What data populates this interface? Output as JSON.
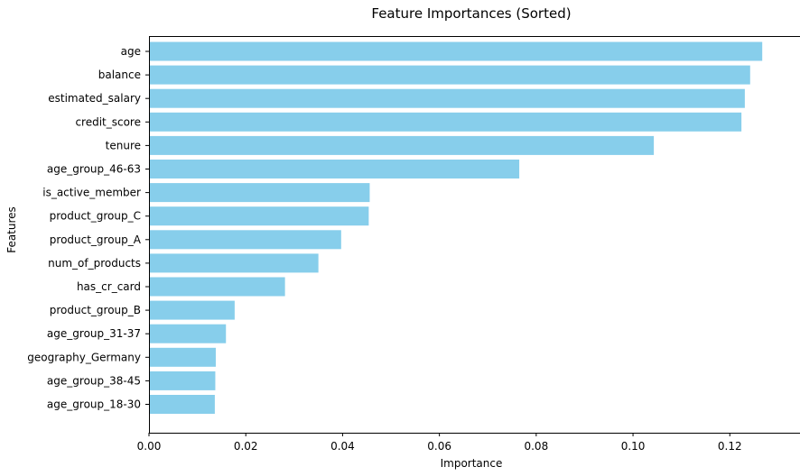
{
  "chart_data": {
    "type": "bar",
    "orientation": "horizontal",
    "title": "Feature Importances (Sorted)",
    "xlabel": "Importance",
    "ylabel": "Features",
    "xlim": [
      0,
      0.1345
    ],
    "xticks": [
      "0.00",
      "0.02",
      "0.04",
      "0.06",
      "0.08",
      "0.10",
      "0.12"
    ],
    "xtick_values": [
      0,
      0.02,
      0.04,
      0.06,
      0.08,
      0.1,
      0.12
    ],
    "grid": false,
    "legend": "none",
    "color": "#87ceeb",
    "categories": [
      "age",
      "balance",
      "estimated_salary",
      "credit_score",
      "tenure",
      "age_group_46-63",
      "is_active_member",
      "product_group_C",
      "product_group_A",
      "num_of_products",
      "has_cr_card",
      "product_group_B",
      "age_group_31-37",
      "geography_Germany",
      "age_group_38-45",
      "age_group_18-30"
    ],
    "values": [
      0.1267,
      0.1242,
      0.1231,
      0.1224,
      0.1043,
      0.0765,
      0.0456,
      0.0454,
      0.0397,
      0.035,
      0.0281,
      0.0177,
      0.0159,
      0.0138,
      0.0137,
      0.0136
    ]
  }
}
